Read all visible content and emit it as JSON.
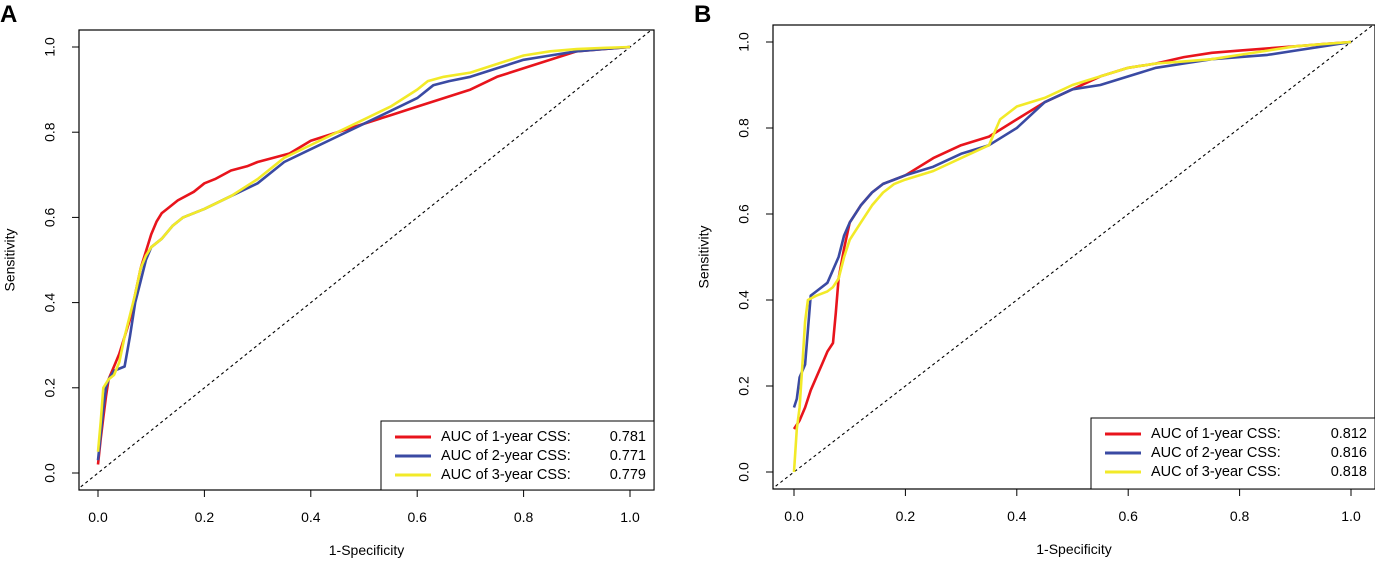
{
  "chart_data": [
    {
      "type": "line",
      "panel_label": "A",
      "xlabel": "1-Specificity",
      "ylabel": "Sensitivity",
      "xlim": [
        0,
        1
      ],
      "ylim": [
        0,
        1
      ],
      "x_ticks": [
        "0.0",
        "0.2",
        "0.4",
        "0.6",
        "0.8",
        "1.0"
      ],
      "y_ticks": [
        "0.0",
        "0.2",
        "0.4",
        "0.6",
        "0.8",
        "1.0"
      ],
      "legend_position": "bottom-right",
      "reference_line": "diagonal dashed",
      "series": [
        {
          "name": "AUC of 1-year CSS:",
          "auc": "0.781",
          "color": "#e8141c",
          "x": [
            0,
            0.005,
            0.01,
            0.015,
            0.02,
            0.03,
            0.04,
            0.05,
            0.06,
            0.07,
            0.08,
            0.09,
            0.1,
            0.11,
            0.12,
            0.13,
            0.15,
            0.18,
            0.2,
            0.22,
            0.25,
            0.28,
            0.3,
            0.33,
            0.36,
            0.4,
            0.45,
            0.5,
            0.55,
            0.6,
            0.65,
            0.7,
            0.75,
            0.8,
            0.85,
            0.9,
            0.95,
            1.0
          ],
          "y": [
            0.02,
            0.08,
            0.13,
            0.18,
            0.22,
            0.25,
            0.28,
            0.32,
            0.36,
            0.42,
            0.48,
            0.52,
            0.56,
            0.59,
            0.61,
            0.62,
            0.64,
            0.66,
            0.68,
            0.69,
            0.71,
            0.72,
            0.73,
            0.74,
            0.75,
            0.78,
            0.8,
            0.82,
            0.84,
            0.86,
            0.88,
            0.9,
            0.93,
            0.95,
            0.97,
            0.99,
            0.995,
            1.0
          ]
        },
        {
          "name": "AUC of 2-year CSS:",
          "auc": "0.771",
          "color": "#3a4aa3",
          "x": [
            0,
            0.005,
            0.01,
            0.015,
            0.02,
            0.03,
            0.05,
            0.06,
            0.07,
            0.08,
            0.09,
            0.1,
            0.12,
            0.14,
            0.16,
            0.2,
            0.25,
            0.3,
            0.35,
            0.4,
            0.45,
            0.5,
            0.55,
            0.6,
            0.63,
            0.66,
            0.7,
            0.75,
            0.8,
            0.85,
            0.9,
            0.95,
            1.0
          ],
          "y": [
            0.03,
            0.09,
            0.15,
            0.2,
            0.22,
            0.24,
            0.25,
            0.32,
            0.4,
            0.45,
            0.5,
            0.53,
            0.55,
            0.58,
            0.6,
            0.62,
            0.65,
            0.68,
            0.73,
            0.76,
            0.79,
            0.82,
            0.85,
            0.88,
            0.91,
            0.92,
            0.93,
            0.95,
            0.97,
            0.98,
            0.99,
            0.995,
            1.0
          ]
        },
        {
          "name": "AUC of 3-year CSS:",
          "auc": "0.779",
          "color": "#f2ea28",
          "x": [
            0,
            0.005,
            0.01,
            0.02,
            0.03,
            0.04,
            0.05,
            0.06,
            0.07,
            0.08,
            0.09,
            0.1,
            0.12,
            0.14,
            0.16,
            0.2,
            0.25,
            0.3,
            0.35,
            0.4,
            0.45,
            0.5,
            0.55,
            0.6,
            0.62,
            0.65,
            0.7,
            0.75,
            0.8,
            0.85,
            0.9,
            0.95,
            1.0
          ],
          "y": [
            0.05,
            0.12,
            0.2,
            0.22,
            0.23,
            0.26,
            0.32,
            0.37,
            0.42,
            0.48,
            0.51,
            0.53,
            0.55,
            0.58,
            0.6,
            0.62,
            0.65,
            0.69,
            0.74,
            0.77,
            0.8,
            0.83,
            0.86,
            0.9,
            0.92,
            0.93,
            0.94,
            0.96,
            0.98,
            0.99,
            0.995,
            0.998,
            1.0
          ]
        }
      ]
    },
    {
      "type": "line",
      "panel_label": "B",
      "xlabel": "1-Specificity",
      "ylabel": "Sensitivity",
      "xlim": [
        0,
        1
      ],
      "ylim": [
        0,
        1
      ],
      "x_ticks": [
        "0.0",
        "0.2",
        "0.4",
        "0.6",
        "0.8",
        "1.0"
      ],
      "y_ticks": [
        "0.0",
        "0.2",
        "0.4",
        "0.6",
        "0.8",
        "1.0"
      ],
      "legend_position": "bottom-right",
      "reference_line": "diagonal dashed",
      "series": [
        {
          "name": "AUC of 1-year CSS:",
          "auc": "0.812",
          "color": "#e8141c",
          "x": [
            0,
            0.005,
            0.01,
            0.02,
            0.03,
            0.04,
            0.05,
            0.06,
            0.07,
            0.075,
            0.08,
            0.09,
            0.1,
            0.12,
            0.14,
            0.16,
            0.18,
            0.2,
            0.25,
            0.3,
            0.35,
            0.4,
            0.45,
            0.5,
            0.55,
            0.6,
            0.65,
            0.7,
            0.75,
            0.8,
            0.85,
            0.9,
            0.95,
            1.0
          ],
          "y": [
            0.1,
            0.11,
            0.12,
            0.15,
            0.19,
            0.22,
            0.25,
            0.28,
            0.3,
            0.37,
            0.45,
            0.52,
            0.58,
            0.62,
            0.65,
            0.67,
            0.68,
            0.69,
            0.73,
            0.76,
            0.78,
            0.82,
            0.86,
            0.89,
            0.92,
            0.94,
            0.95,
            0.965,
            0.975,
            0.98,
            0.985,
            0.99,
            0.995,
            1.0
          ]
        },
        {
          "name": "AUC of 2-year CSS:",
          "auc": "0.816",
          "color": "#3a4aa3",
          "x": [
            0,
            0.005,
            0.01,
            0.02,
            0.025,
            0.03,
            0.04,
            0.06,
            0.08,
            0.09,
            0.1,
            0.12,
            0.14,
            0.16,
            0.18,
            0.2,
            0.25,
            0.3,
            0.35,
            0.4,
            0.45,
            0.5,
            0.55,
            0.6,
            0.65,
            0.7,
            0.75,
            0.8,
            0.85,
            0.9,
            0.95,
            1.0
          ],
          "y": [
            0.15,
            0.17,
            0.22,
            0.25,
            0.33,
            0.41,
            0.42,
            0.44,
            0.5,
            0.55,
            0.58,
            0.62,
            0.65,
            0.67,
            0.68,
            0.69,
            0.71,
            0.74,
            0.76,
            0.8,
            0.86,
            0.89,
            0.9,
            0.92,
            0.94,
            0.95,
            0.96,
            0.965,
            0.97,
            0.98,
            0.99,
            1.0
          ]
        },
        {
          "name": "AUC of 3-year CSS:",
          "auc": "0.818",
          "color": "#f2ea28",
          "x": [
            0,
            0.005,
            0.01,
            0.015,
            0.02,
            0.025,
            0.04,
            0.06,
            0.07,
            0.08,
            0.09,
            0.1,
            0.12,
            0.14,
            0.16,
            0.18,
            0.2,
            0.25,
            0.3,
            0.35,
            0.37,
            0.4,
            0.45,
            0.5,
            0.55,
            0.6,
            0.65,
            0.7,
            0.75,
            0.8,
            0.85,
            0.9,
            0.95,
            1.0
          ],
          "y": [
            0.0,
            0.1,
            0.15,
            0.25,
            0.35,
            0.4,
            0.41,
            0.42,
            0.43,
            0.45,
            0.5,
            0.54,
            0.58,
            0.62,
            0.65,
            0.67,
            0.68,
            0.7,
            0.73,
            0.76,
            0.82,
            0.85,
            0.87,
            0.9,
            0.92,
            0.94,
            0.95,
            0.955,
            0.96,
            0.97,
            0.98,
            0.99,
            0.995,
            1.0
          ]
        }
      ]
    }
  ]
}
